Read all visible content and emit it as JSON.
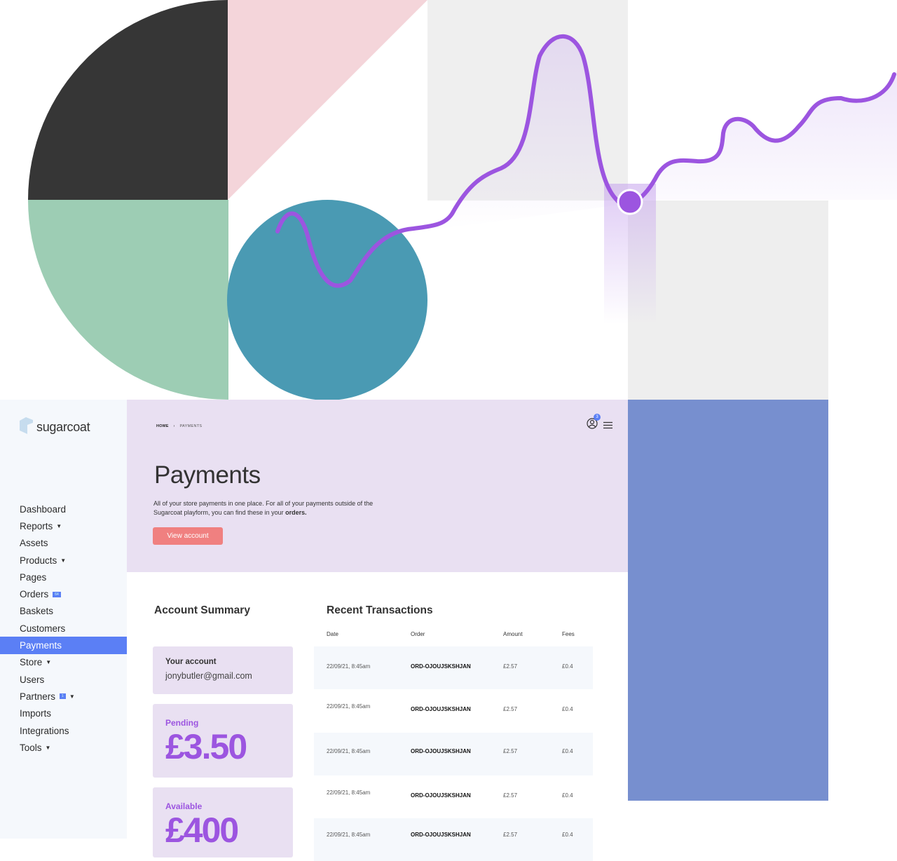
{
  "brand": {
    "name": "sugarcoat",
    "accent": "#5b7ff5",
    "purple": "#9c55e0",
    "button": "#f08080"
  },
  "sidebar": {
    "items": [
      {
        "label": "Dashboard"
      },
      {
        "label": "Reports",
        "caret": true
      },
      {
        "label": "Assets"
      },
      {
        "label": "Products",
        "caret": true
      },
      {
        "label": "Pages"
      },
      {
        "label": "Orders",
        "badge": "64"
      },
      {
        "label": "Baskets"
      },
      {
        "label": "Customers"
      },
      {
        "label": "Payments",
        "active": true
      },
      {
        "label": "Store",
        "caret": true
      },
      {
        "label": "Users"
      },
      {
        "label": "Partners",
        "badge": "1",
        "caret": true
      },
      {
        "label": "Imports"
      },
      {
        "label": "Integrations"
      },
      {
        "label": "Tools",
        "caret": true
      }
    ]
  },
  "header": {
    "breadcrumb": [
      "HOME",
      "PAYMENTS"
    ],
    "notification_count": "3",
    "title": "Payments",
    "description": "All of your store payments in one place. For all of your payments outside of the Sugarcoat playform, you can find these in your ",
    "description_link": "orders.",
    "button": "View account"
  },
  "summary": {
    "title": "Account Summary",
    "account_label": "Your account",
    "account_email": "jonybutler@gmail.com",
    "pending_label": "Pending",
    "pending_value": "£3.50",
    "available_label": "Available",
    "available_value": "£400"
  },
  "transactions": {
    "title": "Recent Transactions",
    "columns": [
      "Date",
      "Order",
      "Amount",
      "Fees"
    ],
    "rows": [
      [
        "22/09/21, 8:45am",
        "ORD-OJOUJSKSHJAN",
        "£2.57",
        "£0.4"
      ],
      [
        "22/09/21, 8:45am",
        "ORD-OJOUJSKSHJAN",
        "£2.57",
        "£0.4"
      ],
      [
        "22/09/21, 8:45am",
        "ORD-OJOUJSKSHJAN",
        "£2.57",
        "£0.4"
      ],
      [
        "22/09/21, 8:45am",
        "ORD-OJOUJSKSHJAN",
        "£2.57",
        "£0.4"
      ],
      [
        "22/09/21, 8:45am",
        "ORD-OJOUJSKSHJAN",
        "£2.57",
        "£0.4"
      ]
    ]
  }
}
